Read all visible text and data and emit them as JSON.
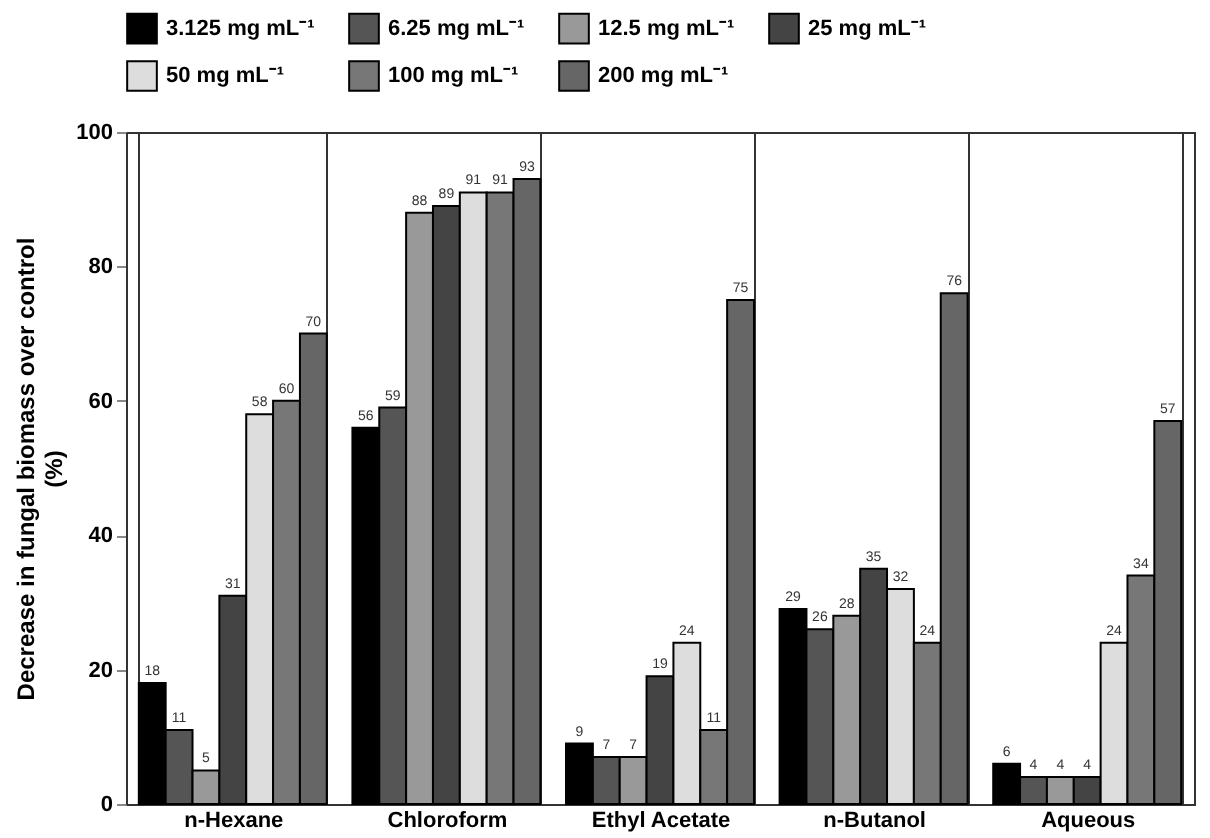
{
  "chart_data": {
    "type": "bar",
    "ylabel": "Decrease in fungal biomass over control\n(%)",
    "categories": [
      "n-Hexane",
      "Chloroform",
      "Ethyl Acetate",
      "n-Butanol",
      "Aqueous"
    ],
    "series": [
      {
        "name": "3.125 mg mL⁻¹",
        "color": "#000000",
        "values": [
          18,
          56,
          9,
          29,
          6
        ]
      },
      {
        "name": "6.25 mg mL⁻¹",
        "color": "#555555",
        "values": [
          11,
          59,
          7,
          26,
          4
        ]
      },
      {
        "name": "12.5 mg mL⁻¹",
        "color": "#999999",
        "values": [
          5,
          88,
          7,
          28,
          4
        ]
      },
      {
        "name": "25 mg mL⁻¹",
        "color": "#444444",
        "values": [
          31,
          89,
          19,
          35,
          4
        ]
      },
      {
        "name": "50 mg mL⁻¹",
        "color": "#dddddd",
        "values": [
          58,
          91,
          24,
          32,
          24
        ]
      },
      {
        "name": "100 mg mL⁻¹",
        "color": "#777777",
        "values": [
          60,
          91,
          11,
          24,
          34
        ]
      },
      {
        "name": "200 mg mL⁻¹",
        "color": "#666666",
        "values": [
          70,
          93,
          75,
          76,
          57
        ]
      }
    ],
    "ylim": [
      0,
      100
    ],
    "yticks": [
      0,
      20,
      40,
      60,
      80,
      100
    ],
    "grid": "x",
    "legend": "top",
    "data_labels": true
  }
}
